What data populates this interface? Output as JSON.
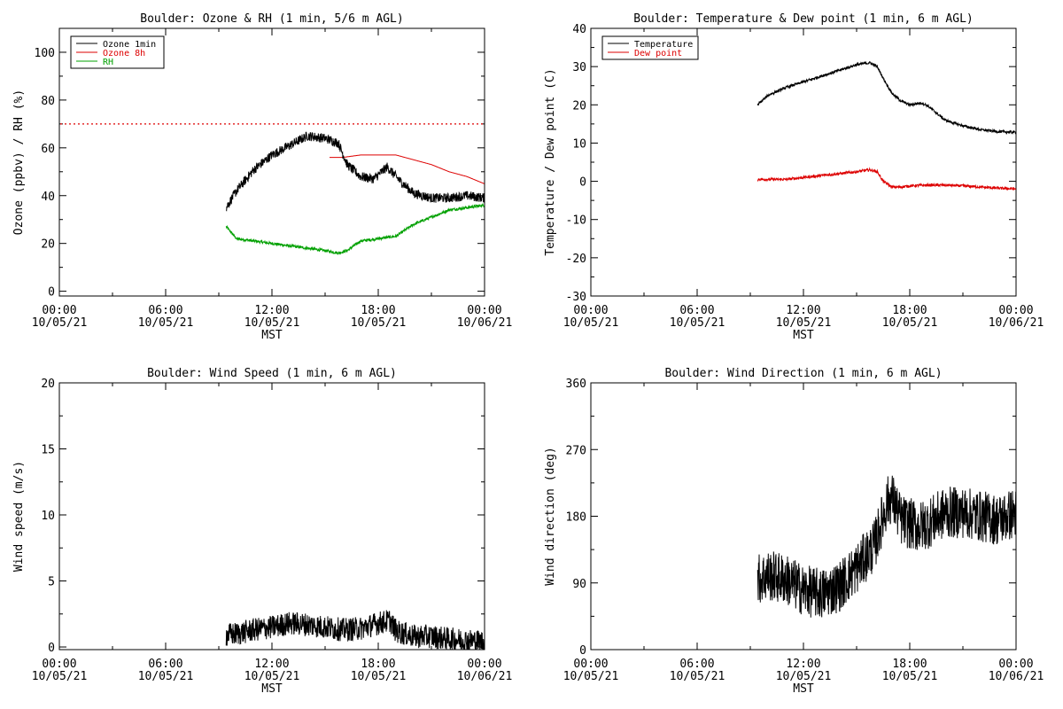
{
  "charts": [
    {
      "id": "ozone-rh",
      "title": "Boulder: Ozone & RH (1 min, 5/6 m AGL)",
      "ylabel": "Ozone (ppbv) / RH (%)",
      "xlabel": "MST",
      "ylim": [
        -2,
        110
      ],
      "yticks": [
        0,
        20,
        40,
        60,
        80,
        100
      ],
      "legend": [
        {
          "label": "Ozone 1min",
          "color": "#000000"
        },
        {
          "label": "Ozone 8h",
          "color": "#dd0000"
        },
        {
          "label": "RH",
          "color": "#00a000"
        }
      ]
    },
    {
      "id": "temp-dew",
      "title": "Boulder: Temperature & Dew point (1 min, 6 m AGL)",
      "ylabel": "Temperature / Dew point (C)",
      "xlabel": "MST",
      "ylim": [
        -30,
        40
      ],
      "yticks": [
        -30,
        -20,
        -10,
        0,
        10,
        20,
        30,
        40
      ],
      "legend": [
        {
          "label": "Temperature",
          "color": "#000000"
        },
        {
          "label": "Dew point",
          "color": "#dd0000"
        }
      ]
    },
    {
      "id": "wind-speed",
      "title": "Boulder: Wind Speed (1 min, 6 m AGL)",
      "ylabel": "Wind speed (m/s)",
      "xlabel": "MST",
      "ylim": [
        -0.2,
        20
      ],
      "yticks": [
        0,
        5,
        10,
        15,
        20
      ],
      "legend": []
    },
    {
      "id": "wind-dir",
      "title": "Boulder: Wind Direction (1 min, 6 m AGL)",
      "ylabel": "Wind direction (deg)",
      "xlabel": "MST",
      "ylim": [
        0,
        360
      ],
      "yticks": [
        0,
        90,
        180,
        270,
        360
      ],
      "legend": []
    }
  ],
  "xticks": [
    {
      "time": "00:00",
      "date": "10/05/21"
    },
    {
      "time": "06:00",
      "date": "10/05/21"
    },
    {
      "time": "12:00",
      "date": "10/05/21"
    },
    {
      "time": "18:00",
      "date": "10/05/21"
    },
    {
      "time": "00:00",
      "date": "10/06/21"
    }
  ],
  "chart_data": [
    {
      "type": "line",
      "title": "Boulder: Ozone & RH (1 min, 5/6 m AGL)",
      "xlabel": "MST",
      "ylabel": "Ozone (ppbv) / RH (%)",
      "xlim": [
        "10/05/21 00:00",
        "10/06/21 00:00"
      ],
      "ylim": [
        0,
        110
      ],
      "reference_line": {
        "y": 70,
        "color": "#dd0000",
        "style": "dotted"
      },
      "series": [
        {
          "name": "Ozone 1min",
          "color": "#000000",
          "x": [
            "09:25",
            "10:00",
            "11:00",
            "12:00",
            "13:00",
            "14:00",
            "15:00",
            "15:45",
            "16:15",
            "17:00",
            "17:45",
            "18:30",
            "19:15",
            "20:00",
            "21:00",
            "22:00",
            "23:00",
            "23:59"
          ],
          "y": [
            35,
            42,
            51,
            57,
            61,
            65,
            64,
            62,
            53,
            48,
            47,
            52,
            46,
            41,
            39,
            39,
            40,
            39
          ]
        },
        {
          "name": "Ozone 8h",
          "color": "#dd0000",
          "x": [
            "15:15",
            "16:00",
            "17:00",
            "18:00",
            "19:00",
            "20:00",
            "21:00",
            "22:00",
            "23:00",
            "23:59"
          ],
          "y": [
            56,
            56,
            57,
            57,
            57,
            55,
            53,
            50,
            48,
            45
          ]
        },
        {
          "name": "RH",
          "color": "#00a000",
          "x": [
            "09:25",
            "10:00",
            "11:00",
            "12:00",
            "13:00",
            "14:00",
            "15:00",
            "15:45",
            "16:15",
            "17:00",
            "18:00",
            "19:00",
            "20:00",
            "21:00",
            "22:00",
            "23:00",
            "23:59"
          ],
          "y": [
            27,
            22,
            21,
            20,
            19,
            18,
            17,
            16,
            17,
            21,
            22,
            23,
            28,
            31,
            34,
            35,
            36
          ]
        }
      ]
    },
    {
      "type": "line",
      "title": "Boulder: Temperature & Dew point (1 min, 6 m AGL)",
      "xlabel": "MST",
      "ylabel": "Temperature / Dew point (C)",
      "xlim": [
        "10/05/21 00:00",
        "10/06/21 00:00"
      ],
      "ylim": [
        -30,
        40
      ],
      "series": [
        {
          "name": "Temperature",
          "color": "#000000",
          "x": [
            "09:25",
            "10:00",
            "11:00",
            "12:00",
            "13:00",
            "14:00",
            "15:00",
            "15:45",
            "16:10",
            "16:30",
            "17:00",
            "17:30",
            "18:00",
            "18:40",
            "19:00",
            "20:00",
            "21:00",
            "22:00",
            "23:00",
            "23:59"
          ],
          "y": [
            20,
            22.5,
            24.5,
            26,
            27.5,
            29,
            30.5,
            31,
            30,
            27,
            23,
            21,
            20,
            20.5,
            19.8,
            16,
            14.5,
            13.5,
            13,
            12.8
          ]
        },
        {
          "name": "Dew point",
          "color": "#dd0000",
          "x": [
            "09:25",
            "10:00",
            "11:00",
            "12:00",
            "13:00",
            "14:00",
            "15:00",
            "15:45",
            "16:10",
            "16:30",
            "17:00",
            "17:30",
            "18:00",
            "19:00",
            "20:00",
            "21:00",
            "22:00",
            "23:00",
            "23:59"
          ],
          "y": [
            0.5,
            0.5,
            0.5,
            1,
            1.5,
            2,
            2.5,
            3,
            2.5,
            0,
            -1.5,
            -1.5,
            -1.2,
            -1,
            -1,
            -1.2,
            -1.5,
            -1.8,
            -2
          ]
        }
      ]
    },
    {
      "type": "line",
      "title": "Boulder: Wind Speed (1 min, 6 m AGL)",
      "xlabel": "MST",
      "ylabel": "Wind speed (m/s)",
      "xlim": [
        "10/05/21 00:00",
        "10/06/21 00:00"
      ],
      "ylim": [
        0,
        20
      ],
      "series": [
        {
          "name": "",
          "color": "#000000",
          "x": [
            "09:25",
            "10:00",
            "11:00",
            "12:00",
            "13:00",
            "14:00",
            "15:00",
            "16:00",
            "17:00",
            "18:00",
            "18:40",
            "19:00",
            "20:00",
            "21:00",
            "22:00",
            "23:00",
            "23:59"
          ],
          "y": [
            0.9,
            1.0,
            1.3,
            1.5,
            1.8,
            1.7,
            1.5,
            1.3,
            1.4,
            1.8,
            2.0,
            1.2,
            0.8,
            0.8,
            0.6,
            0.5,
            0.4
          ]
        }
      ]
    },
    {
      "type": "line",
      "title": "Boulder: Wind Direction (1 min, 6 m AGL)",
      "xlabel": "MST",
      "ylabel": "Wind direction (deg)",
      "xlim": [
        "10/05/21 00:00",
        "10/06/21 00:00"
      ],
      "ylim": [
        0,
        360
      ],
      "series": [
        {
          "name": "",
          "color": "#000000",
          "x": [
            "09:25",
            "10:00",
            "11:00",
            "12:00",
            "13:00",
            "14:00",
            "15:00",
            "16:00",
            "16:45",
            "17:00",
            "17:30",
            "18:00",
            "18:30",
            "19:00",
            "20:00",
            "21:00",
            "22:00",
            "23:00",
            "23:59"
          ],
          "y": [
            95,
            100,
            95,
            80,
            75,
            85,
            110,
            140,
            200,
            205,
            175,
            170,
            165,
            170,
            185,
            185,
            180,
            175,
            185
          ]
        }
      ]
    }
  ]
}
